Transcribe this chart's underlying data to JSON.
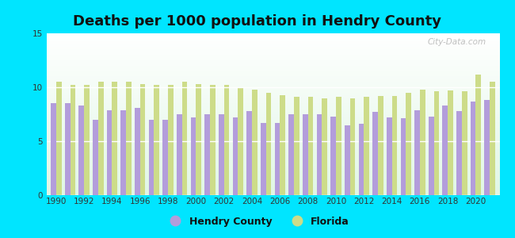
{
  "title": "Deaths per 1000 population in Hendry County",
  "years": [
    1990,
    1991,
    1992,
    1993,
    1994,
    1995,
    1996,
    1997,
    1998,
    1999,
    2000,
    2001,
    2002,
    2003,
    2004,
    2005,
    2006,
    2007,
    2008,
    2009,
    2010,
    2011,
    2012,
    2013,
    2014,
    2015,
    2016,
    2017,
    2018,
    2019,
    2020,
    2021
  ],
  "hendry": [
    8.5,
    8.5,
    8.3,
    7.0,
    7.9,
    7.9,
    8.1,
    7.0,
    7.0,
    7.5,
    7.2,
    7.5,
    7.5,
    7.2,
    7.8,
    6.7,
    6.7,
    7.5,
    7.5,
    7.5,
    7.3,
    6.5,
    6.6,
    7.7,
    7.2,
    7.1,
    7.9,
    7.3,
    8.3,
    7.8,
    8.7,
    8.8
  ],
  "florida": [
    10.5,
    10.2,
    10.2,
    10.5,
    10.5,
    10.5,
    10.3,
    10.2,
    10.2,
    10.5,
    10.3,
    10.2,
    10.2,
    10.0,
    9.8,
    9.5,
    9.3,
    9.1,
    9.1,
    9.0,
    9.1,
    9.0,
    9.1,
    9.2,
    9.2,
    9.5,
    9.8,
    9.6,
    9.7,
    9.6,
    11.2,
    10.5
  ],
  "hendry_color": "#b39ddb",
  "florida_color": "#cddc89",
  "outer_bg": "#00e5ff",
  "ylim": [
    0,
    15
  ],
  "yticks": [
    0,
    5,
    10,
    15
  ],
  "title_fontsize": 13,
  "bar_width": 0.38
}
